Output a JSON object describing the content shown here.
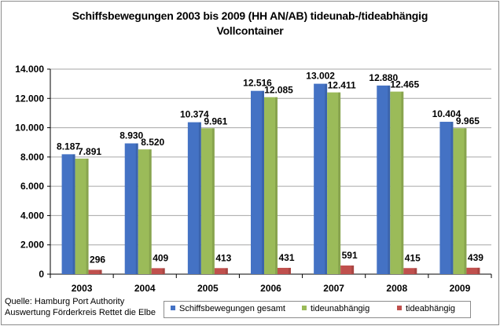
{
  "chart_data": {
    "type": "bar",
    "title": "Schiffsbewegungen 2003 bis  2009 (HH AN/AB) tideunab-/tideabhängig",
    "subtitle": "Vollcontainer",
    "categories": [
      "2003",
      "2004",
      "2005",
      "2006",
      "2007",
      "2008",
      "2009"
    ],
    "series": [
      {
        "name": "Schiffsbewegungen gesamt",
        "color": "#4472c4",
        "values": [
          8187,
          8930,
          10374,
          12516,
          13002,
          12880,
          10404
        ],
        "labels": [
          "8.187",
          "8.930",
          "10.374",
          "12.516",
          "13.002",
          "12.880",
          "10.404"
        ]
      },
      {
        "name": "tideunabhängig",
        "color": "#9bbb59",
        "values": [
          7891,
          8520,
          9961,
          12085,
          12411,
          12465,
          9965
        ],
        "labels": [
          "7.891",
          "8.520",
          "9.961",
          "12.085",
          "12.411",
          "12.465",
          "9.965"
        ]
      },
      {
        "name": "tideabhängig",
        "color": "#c0504d",
        "values": [
          296,
          409,
          413,
          431,
          591,
          415,
          439
        ],
        "labels": [
          "296",
          "409",
          "413",
          "431",
          "591",
          "415",
          "439"
        ]
      }
    ],
    "yticks": [
      "0",
      "2.000",
      "4.000",
      "6.000",
      "8.000",
      "10.000",
      "12.000",
      "14.000"
    ],
    "ylim": [
      0,
      14000
    ],
    "grid": true,
    "legend": "bottom"
  },
  "source_lines": [
    "Quelle: Hamburg Port Authority",
    "Auswertung Förderkreis Rettet die Elbe"
  ]
}
